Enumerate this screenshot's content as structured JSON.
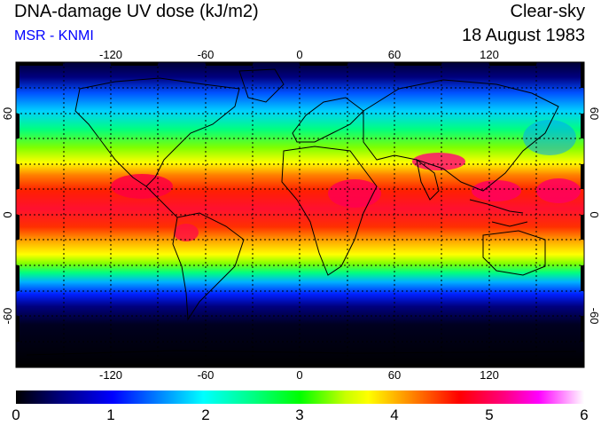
{
  "header": {
    "title": "DNA-damage UV dose (kJ/m2)",
    "subtitle": "MSR - KNMI",
    "condition": "Clear-sky",
    "date": "18 August 1983"
  },
  "map": {
    "lon_ticks": [
      "-120",
      "-60",
      "0",
      "60",
      "120"
    ],
    "lat_ticks_left": [
      "60",
      "0",
      "-60"
    ],
    "lat_ticks_right": [
      "60",
      "0",
      "-60"
    ],
    "gridlines": "dotted every 30 degrees"
  },
  "colorbar": {
    "labels": [
      "0",
      "1",
      "2",
      "3",
      "4",
      "5",
      "6"
    ],
    "colors": [
      "#000000",
      "#000080",
      "#0000ff",
      "#00c8ff",
      "#00ffc8",
      "#00ff00",
      "#c8ff00",
      "#ffff00",
      "#ff8000",
      "#ff0000",
      "#ff0080",
      "#ff00ff",
      "#ffc8ff",
      "#ffffff"
    ]
  }
}
